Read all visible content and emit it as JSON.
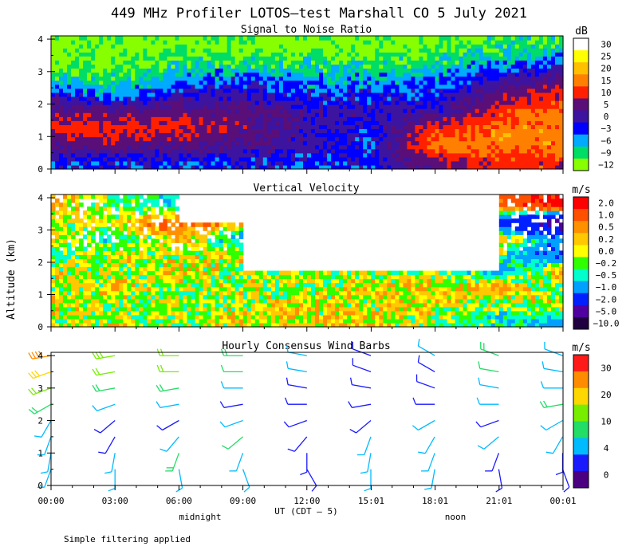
{
  "title": "449 MHz Profiler LOTOS–test Marshall CO  5 July 2021",
  "y_axis_label": "Altitude (km)",
  "x_axis_label": "UT  (CDT – 5)",
  "midnight_label": "midnight",
  "noon_label": "noon",
  "footnote": "Simple filtering applied",
  "chart_data": [
    {
      "type": "heatmap",
      "title": "Signal to Noise Ratio",
      "xlabel": "UT  (CDT – 5)",
      "ylabel": "Altitude (km)",
      "xlim": [
        0,
        24.017
      ],
      "ylim": [
        0,
        4.1
      ],
      "x_ticks": [
        0,
        3,
        6,
        9,
        12,
        15.017,
        18.017,
        21.017,
        24.017
      ],
      "x_tick_labels": [
        "00:00",
        "03:00",
        "06:00",
        "09:00",
        "12:00",
        "15:01",
        "18:01",
        "21:01",
        "00:01"
      ],
      "y_ticks": [
        0,
        1,
        2,
        3,
        4
      ],
      "colorbar_unit": "dB",
      "colorbar_labels": [
        "30",
        "25",
        "20",
        "15",
        "10",
        "5",
        "0",
        "−3",
        "−6",
        "−9",
        "−12"
      ],
      "colorbar_colors": [
        "#ffffff",
        "#ffff00",
        "#ffc000",
        "#ff8000",
        "#ff2000",
        "#5a0e78",
        "#3c14a0",
        "#0000ff",
        "#00aaff",
        "#00dd66",
        "#88ff00"
      ],
      "profile_hours": [
        0,
        3,
        6,
        9,
        12,
        15,
        18,
        21,
        24
      ],
      "altitude_km": [
        0.25,
        0.75,
        1.25,
        1.75,
        2.25,
        2.75,
        3.25,
        3.75
      ],
      "values_db": [
        [
          -3,
          3,
          10,
          5,
          0,
          -9,
          -12,
          -12
        ],
        [
          -3,
          5,
          10,
          5,
          -6,
          -9,
          -12,
          -12
        ],
        [
          -3,
          3,
          10,
          5,
          0,
          -6,
          -9,
          -12
        ],
        [
          -3,
          3,
          5,
          5,
          0,
          -3,
          -9,
          -12
        ],
        [
          -3,
          0,
          0,
          0,
          -3,
          -6,
          -9,
          -12
        ],
        [
          -3,
          -3,
          -3,
          0,
          -3,
          -6,
          -9,
          -12
        ],
        [
          5,
          15,
          10,
          0,
          -3,
          -6,
          -9,
          -12
        ],
        [
          10,
          15,
          15,
          10,
          5,
          0,
          -6,
          -9
        ],
        [
          10,
          15,
          15,
          15,
          10,
          5,
          -3,
          -9
        ]
      ]
    },
    {
      "type": "heatmap",
      "title": "Vertical Velocity",
      "xlabel": "UT  (CDT – 5)",
      "ylabel": "Altitude (km)",
      "xlim": [
        0,
        24.017
      ],
      "ylim": [
        0,
        4.1
      ],
      "x_ticks": [
        0,
        3,
        6,
        9,
        12,
        15.017,
        18.017,
        21.017,
        24.017
      ],
      "x_tick_labels": [
        "00:00",
        "03:00",
        "06:00",
        "09:00",
        "12:00",
        "15:01",
        "18:01",
        "21:01",
        "00:01"
      ],
      "y_ticks": [
        0,
        1,
        2,
        3,
        4
      ],
      "colorbar_unit": "m/s",
      "colorbar_labels": [
        "2.0",
        "1.0",
        "0.5",
        "0.2",
        "0.0",
        "−0.2",
        "−0.5",
        "−1.0",
        "−2.0",
        "−5.0",
        "−10.0"
      ],
      "colorbar_colors": [
        "#ff0000",
        "#ff5000",
        "#ff9000",
        "#ffc800",
        "#ffff00",
        "#30ff00",
        "#00ffcc",
        "#00a0ff",
        "#0020ff",
        "#5000a0",
        "#200040"
      ],
      "profile_hours": [
        0,
        3,
        6,
        9,
        12,
        15,
        18,
        21,
        24
      ],
      "altitude_km": [
        0.25,
        0.75,
        1.25,
        1.75,
        2.25,
        2.75,
        3.25,
        3.75
      ],
      "values_ms": [
        [
          -0.2,
          0.2,
          -0.2,
          0.0,
          -0.5,
          0.2,
          -0.2,
          0.5
        ],
        [
          0.0,
          -0.2,
          0.2,
          -0.2,
          0.0,
          -0.5,
          0.2,
          -0.2
        ],
        [
          -0.2,
          0.0,
          -0.2,
          0.2,
          -0.2,
          0.5,
          1.0,
          -0.5
        ],
        [
          0.2,
          -0.2,
          0.0,
          -0.2,
          0.2,
          -1.0,
          0.5,
          null
        ],
        [
          0.0,
          0.2,
          -0.2,
          0.0,
          null,
          null,
          null,
          null
        ],
        [
          0.2,
          0.0,
          0.2,
          -0.2,
          null,
          null,
          null,
          null
        ],
        [
          -0.2,
          0.2,
          0.0,
          -0.2,
          null,
          null,
          null,
          null
        ],
        [
          -0.5,
          -0.2,
          0.5,
          -1.0,
          -0.2,
          0.5,
          -2.0,
          1.0
        ],
        [
          -1.0,
          0.2,
          -0.5,
          0.5,
          -2.0,
          -1.0,
          -5.0,
          2.0
        ]
      ]
    },
    {
      "type": "wind_barbs",
      "title": "Hourly Consensus Wind Barbs",
      "xlabel": "UT  (CDT – 5)",
      "ylabel": "Altitude (km)",
      "xlim": [
        0,
        24.017
      ],
      "ylim": [
        0,
        4.1
      ],
      "x_ticks": [
        0,
        3,
        6,
        9,
        12,
        15.017,
        18.017,
        21.017,
        24.017
      ],
      "x_tick_labels": [
        "00:00",
        "03:00",
        "06:00",
        "09:00",
        "12:00",
        "15:01",
        "18:01",
        "21:01",
        "00:01"
      ],
      "y_ticks": [
        0,
        1,
        2,
        3,
        4
      ],
      "colorbar_unit": "m/s",
      "colorbar_labels": [
        "30",
        "20",
        "10",
        "4",
        "0"
      ],
      "colorbar_colors": [
        "#ff1a1a",
        "#ff8c00",
        "#ffd700",
        "#77ee00",
        "#22dd66",
        "#00bbff",
        "#1a1aff",
        "#4b0082"
      ],
      "speed_bounds_ms": [
        30,
        25,
        20,
        15,
        10,
        7,
        4,
        2,
        0
      ],
      "hours": [
        0,
        3,
        6,
        9,
        12,
        15,
        18,
        21,
        24
      ],
      "altitude_km": [
        0.5,
        1.0,
        1.5,
        2.0,
        2.5,
        3.0,
        3.5,
        4.0
      ],
      "speed_ms": [
        [
          6,
          4,
          4,
          5,
          8,
          12,
          16,
          20
        ],
        [
          5,
          4,
          3,
          3,
          5,
          9,
          12,
          14
        ],
        [
          5,
          8,
          4,
          3,
          4,
          8,
          10,
          12
        ],
        [
          4,
          6,
          7,
          4,
          3,
          5,
          7,
          8
        ],
        [
          3,
          3,
          3,
          3,
          2,
          3,
          4,
          5
        ],
        [
          5,
          4,
          4,
          3,
          3,
          2,
          2,
          3
        ],
        [
          4,
          5,
          4,
          4,
          3,
          3,
          3,
          4
        ],
        [
          3,
          3,
          4,
          3,
          5,
          6,
          7,
          8
        ],
        [
          2,
          3,
          4,
          5,
          8,
          6,
          6,
          5
        ]
      ],
      "direction_deg": [
        [
          200,
          190,
          200,
          210,
          240,
          250,
          250,
          260
        ],
        [
          180,
          190,
          210,
          230,
          250,
          260,
          260,
          260
        ],
        [
          170,
          200,
          220,
          240,
          260,
          260,
          270,
          270
        ],
        [
          160,
          200,
          230,
          250,
          260,
          270,
          270,
          270
        ],
        [
          150,
          180,
          220,
          250,
          270,
          280,
          280,
          280
        ],
        [
          180,
          190,
          200,
          230,
          260,
          280,
          290,
          290
        ],
        [
          190,
          200,
          210,
          240,
          270,
          290,
          300,
          300
        ],
        [
          170,
          200,
          230,
          250,
          270,
          280,
          280,
          290
        ],
        [
          160,
          180,
          210,
          240,
          260,
          270,
          280,
          290
        ]
      ]
    }
  ]
}
